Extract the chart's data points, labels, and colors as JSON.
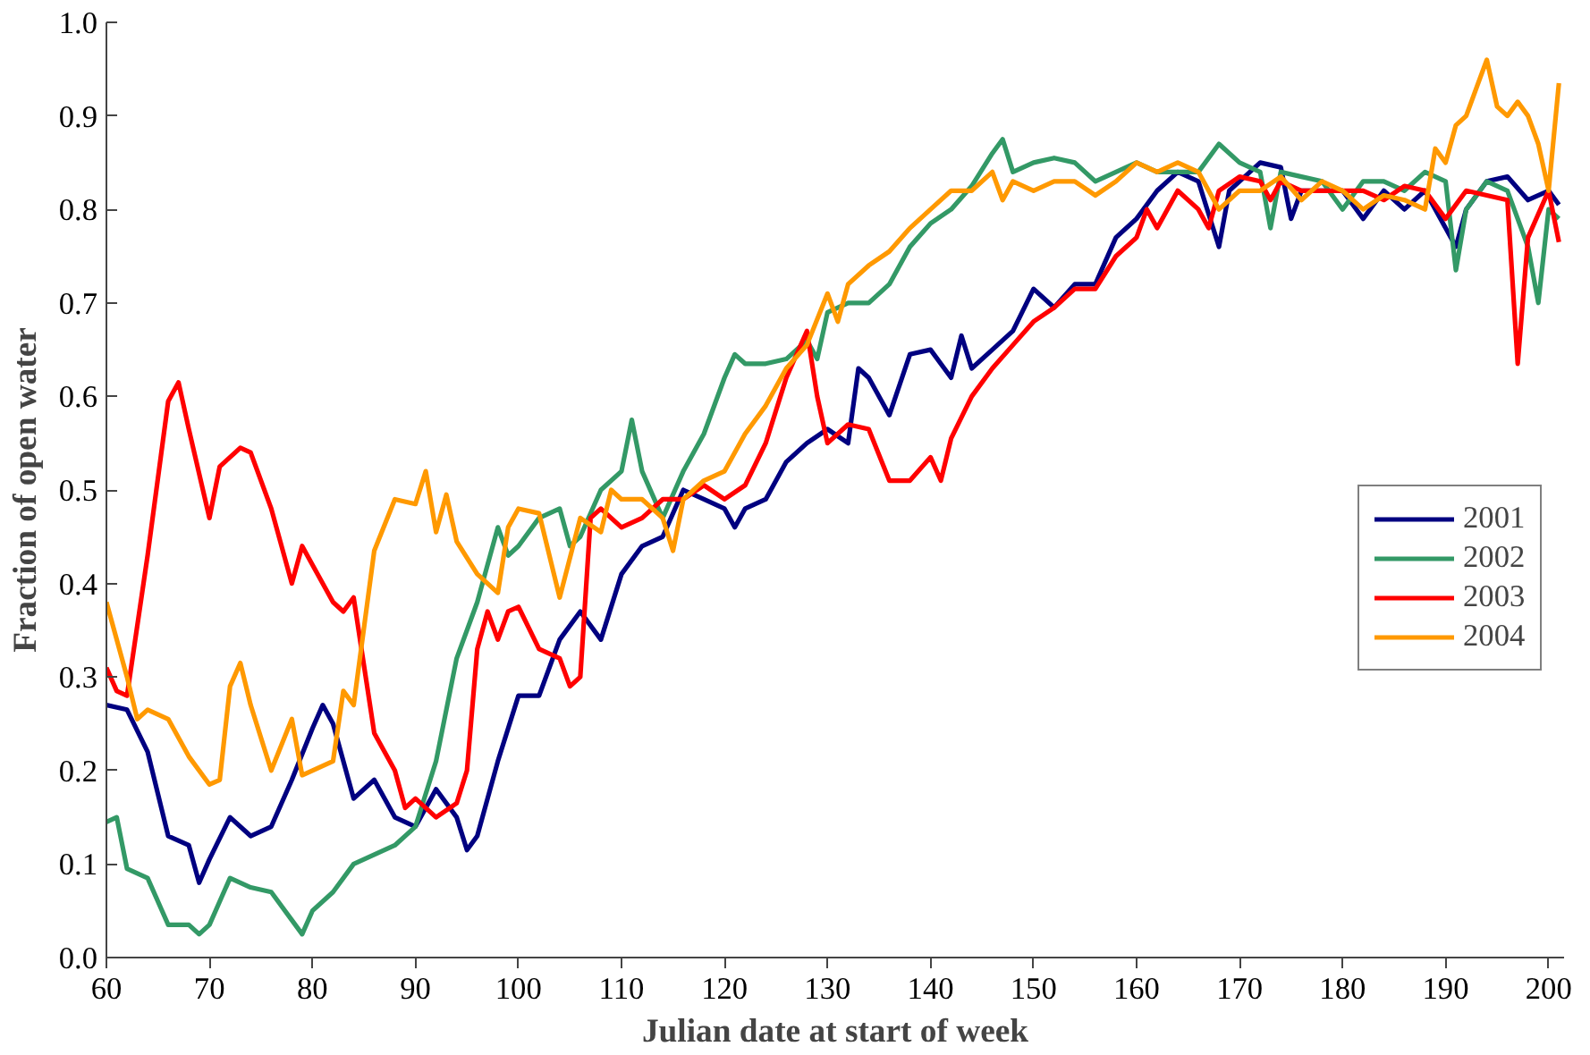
{
  "chart_data": {
    "type": "line",
    "xlabel": "Julian date at start of week",
    "ylabel": "Fraction of open water",
    "xlim": [
      60,
      201.5
    ],
    "xticks": [
      60,
      70,
      80,
      90,
      100,
      110,
      120,
      130,
      140,
      150,
      160,
      170,
      180,
      190,
      200
    ],
    "ylim": [
      0,
      1
    ],
    "yticks": [
      {
        "value": 0,
        "label": "0.0"
      },
      0.1,
      0.2,
      0.3,
      0.4,
      0.5,
      0.6,
      0.7,
      0.8,
      0.9,
      {
        "value": 1,
        "label": "1.0"
      }
    ],
    "grid": false,
    "legend": "right",
    "line_style": "solid",
    "marker": "none",
    "series": [
      {
        "name": "2001",
        "color": "#000080",
        "x": [
          60,
          62,
          64,
          66,
          68,
          69,
          70,
          72,
          74,
          76,
          78,
          80,
          81,
          82,
          84,
          86,
          88,
          90,
          92,
          94,
          95,
          96,
          98,
          100,
          102,
          104,
          106,
          108,
          110,
          112,
          114,
          116,
          118,
          120,
          121,
          122,
          124,
          126,
          128,
          130,
          132,
          133,
          134,
          136,
          138,
          140,
          142,
          143,
          144,
          146,
          148,
          150,
          152,
          154,
          156,
          158,
          160,
          162,
          164,
          166,
          168,
          169,
          170,
          172,
          174,
          175,
          176,
          178,
          180,
          182,
          184,
          186,
          188,
          190,
          191,
          192,
          194,
          196,
          198,
          200,
          201
        ],
        "values": [
          0.27,
          0.265,
          0.22,
          0.13,
          0.12,
          0.08,
          0.105,
          0.15,
          0.13,
          0.14,
          0.19,
          0.245,
          0.27,
          0.25,
          0.17,
          0.19,
          0.15,
          0.14,
          0.18,
          0.15,
          0.115,
          0.13,
          0.21,
          0.28,
          0.28,
          0.34,
          0.37,
          0.34,
          0.41,
          0.44,
          0.45,
          0.5,
          0.49,
          0.48,
          0.46,
          0.48,
          0.49,
          0.53,
          0.55,
          0.565,
          0.55,
          0.63,
          0.62,
          0.58,
          0.645,
          0.65,
          0.62,
          0.665,
          0.63,
          0.65,
          0.67,
          0.715,
          0.695,
          0.72,
          0.72,
          0.77,
          0.79,
          0.82,
          0.84,
          0.83,
          0.76,
          0.82,
          0.83,
          0.85,
          0.845,
          0.79,
          0.82,
          0.82,
          0.82,
          0.79,
          0.82,
          0.8,
          0.82,
          0.78,
          0.76,
          0.8,
          0.83,
          0.835,
          0.81,
          0.82,
          0.805
        ]
      },
      {
        "name": "2002",
        "color": "#339966",
        "x": [
          60,
          61,
          62,
          64,
          66,
          68,
          69,
          70,
          72,
          74,
          76,
          78,
          79,
          80,
          82,
          84,
          86,
          88,
          90,
          92,
          94,
          96,
          98,
          99,
          100,
          102,
          104,
          105,
          106,
          108,
          110,
          111,
          112,
          114,
          116,
          118,
          120,
          121,
          122,
          124,
          126,
          128,
          129,
          130,
          132,
          134,
          136,
          138,
          140,
          142,
          144,
          146,
          147,
          148,
          150,
          152,
          154,
          156,
          158,
          160,
          162,
          164,
          166,
          168,
          170,
          172,
          173,
          174,
          176,
          178,
          180,
          182,
          184,
          186,
          188,
          190,
          191,
          192,
          194,
          196,
          198,
          199,
          200,
          201
        ],
        "values": [
          0.145,
          0.15,
          0.095,
          0.085,
          0.035,
          0.035,
          0.025,
          0.035,
          0.085,
          0.075,
          0.07,
          0.04,
          0.025,
          0.05,
          0.07,
          0.1,
          0.11,
          0.12,
          0.14,
          0.21,
          0.32,
          0.38,
          0.46,
          0.43,
          0.44,
          0.47,
          0.48,
          0.44,
          0.45,
          0.5,
          0.52,
          0.575,
          0.52,
          0.47,
          0.52,
          0.56,
          0.62,
          0.645,
          0.635,
          0.635,
          0.64,
          0.66,
          0.64,
          0.69,
          0.7,
          0.7,
          0.72,
          0.76,
          0.785,
          0.8,
          0.825,
          0.86,
          0.875,
          0.84,
          0.85,
          0.855,
          0.85,
          0.83,
          0.84,
          0.85,
          0.84,
          0.84,
          0.84,
          0.87,
          0.85,
          0.84,
          0.78,
          0.84,
          0.835,
          0.83,
          0.8,
          0.83,
          0.83,
          0.82,
          0.84,
          0.83,
          0.735,
          0.8,
          0.83,
          0.82,
          0.76,
          0.7,
          0.8,
          0.79
        ]
      },
      {
        "name": "2003",
        "color": "#ff0000",
        "x": [
          60,
          61,
          62,
          64,
          66,
          67,
          68,
          70,
          71,
          72,
          73,
          74,
          76,
          78,
          79,
          80,
          82,
          83,
          84,
          86,
          88,
          89,
          90,
          92,
          94,
          95,
          96,
          97,
          98,
          99,
          100,
          102,
          104,
          105,
          106,
          107,
          108,
          110,
          112,
          114,
          116,
          118,
          120,
          122,
          124,
          126,
          128,
          129,
          130,
          132,
          134,
          136,
          138,
          140,
          141,
          142,
          144,
          146,
          148,
          150,
          152,
          154,
          156,
          158,
          160,
          161,
          162,
          164,
          166,
          167,
          168,
          170,
          172,
          173,
          174,
          176,
          178,
          180,
          182,
          184,
          186,
          188,
          190,
          192,
          194,
          196,
          197,
          198,
          200,
          201
        ],
        "values": [
          0.31,
          0.285,
          0.28,
          0.43,
          0.595,
          0.615,
          0.565,
          0.47,
          0.525,
          0.535,
          0.545,
          0.54,
          0.48,
          0.4,
          0.44,
          0.42,
          0.38,
          0.37,
          0.385,
          0.24,
          0.2,
          0.16,
          0.17,
          0.15,
          0.165,
          0.2,
          0.33,
          0.37,
          0.34,
          0.37,
          0.375,
          0.33,
          0.32,
          0.29,
          0.3,
          0.47,
          0.48,
          0.46,
          0.47,
          0.49,
          0.49,
          0.505,
          0.49,
          0.505,
          0.55,
          0.62,
          0.67,
          0.6,
          0.55,
          0.57,
          0.565,
          0.51,
          0.51,
          0.535,
          0.51,
          0.555,
          0.6,
          0.63,
          0.655,
          0.68,
          0.695,
          0.715,
          0.715,
          0.75,
          0.77,
          0.8,
          0.78,
          0.82,
          0.8,
          0.78,
          0.82,
          0.835,
          0.83,
          0.81,
          0.83,
          0.82,
          0.82,
          0.82,
          0.82,
          0.81,
          0.825,
          0.82,
          0.79,
          0.82,
          0.815,
          0.81,
          0.635,
          0.77,
          0.82,
          0.765
        ]
      },
      {
        "name": "2004",
        "color": "#ff9900",
        "x": [
          60,
          62,
          63,
          64,
          66,
          68,
          70,
          71,
          72,
          73,
          74,
          76,
          78,
          79,
          80,
          82,
          83,
          84,
          86,
          88,
          90,
          91,
          92,
          93,
          94,
          96,
          98,
          99,
          100,
          102,
          104,
          106,
          108,
          109,
          110,
          112,
          114,
          115,
          116,
          118,
          120,
          122,
          124,
          126,
          128,
          130,
          131,
          132,
          134,
          136,
          138,
          140,
          142,
          144,
          146,
          147,
          148,
          150,
          152,
          154,
          156,
          158,
          160,
          162,
          164,
          166,
          168,
          170,
          172,
          174,
          176,
          178,
          180,
          182,
          184,
          186,
          188,
          189,
          190,
          191,
          192,
          193,
          194,
          195,
          196,
          197,
          198,
          199,
          200,
          201
        ],
        "values": [
          0.38,
          0.3,
          0.255,
          0.265,
          0.255,
          0.215,
          0.185,
          0.19,
          0.29,
          0.315,
          0.27,
          0.2,
          0.255,
          0.195,
          0.2,
          0.21,
          0.285,
          0.27,
          0.435,
          0.49,
          0.485,
          0.52,
          0.455,
          0.495,
          0.445,
          0.41,
          0.39,
          0.46,
          0.48,
          0.475,
          0.385,
          0.47,
          0.455,
          0.5,
          0.49,
          0.49,
          0.47,
          0.435,
          0.49,
          0.51,
          0.52,
          0.56,
          0.59,
          0.63,
          0.655,
          0.71,
          0.68,
          0.72,
          0.74,
          0.755,
          0.78,
          0.8,
          0.82,
          0.82,
          0.84,
          0.81,
          0.83,
          0.82,
          0.83,
          0.83,
          0.815,
          0.83,
          0.85,
          0.84,
          0.85,
          0.84,
          0.8,
          0.82,
          0.82,
          0.835,
          0.81,
          0.83,
          0.82,
          0.8,
          0.815,
          0.81,
          0.8,
          0.865,
          0.85,
          0.89,
          0.9,
          0.93,
          0.96,
          0.91,
          0.9,
          0.915,
          0.9,
          0.87,
          0.82,
          0.935
        ]
      }
    ]
  }
}
